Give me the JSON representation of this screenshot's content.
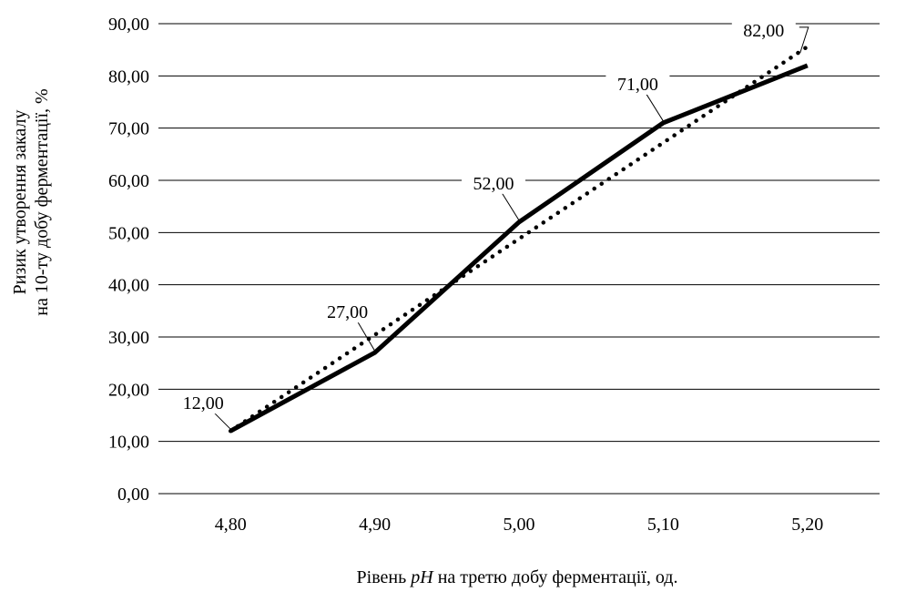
{
  "chart_data": {
    "type": "line",
    "categories": [
      "4,80",
      "4,90",
      "5,00",
      "5,10",
      "5,20"
    ],
    "series": [
      {
        "values": [
          12.0,
          27.0,
          52.0,
          71.0,
          82.0
        ]
      }
    ],
    "data_labels": [
      "12,00",
      "27,00",
      "52,00",
      "71,00",
      "82,00"
    ],
    "trendline": {
      "type": "linear",
      "style": "dotted"
    },
    "y_ticks": [
      "0,00",
      "10,00",
      "20,00",
      "30,00",
      "40,00",
      "50,00",
      "60,00",
      "70,00",
      "80,00",
      "90,00"
    ],
    "ylim": [
      0,
      90
    ],
    "ystep": 10,
    "xlabel": {
      "before": "Рівень ",
      "italic": "pH",
      "after": " на третю добу ферментації, од."
    },
    "ylabel": {
      "line1": "Ризик утворення закалу",
      "line2": "на 10-ту добу ферментації, %"
    },
    "grid": "horizontal",
    "colors": {
      "series": "#000000",
      "grid": "#000000",
      "background": "#ffffff"
    }
  }
}
